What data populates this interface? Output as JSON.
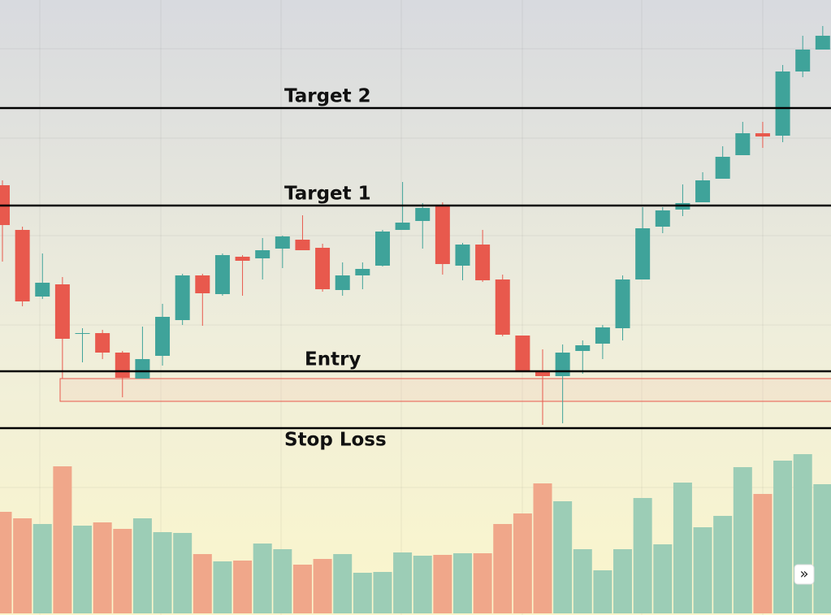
{
  "chart_data": {
    "type": "candlestick",
    "ylim": [
      0,
      757
    ],
    "volume_lim": [
      0,
      755
    ],
    "up_color": "#3fa39a",
    "down_color": "#e8594d",
    "volume_up_color": "#9ccdb6",
    "volume_down_color": "#f0a78a",
    "open": [
      529,
      474,
      392,
      407,
      346,
      347,
      323,
      291,
      319,
      363,
      418,
      395,
      441,
      439,
      451,
      462,
      452,
      400,
      418,
      430,
      474,
      485,
      503,
      430,
      456,
      413,
      344,
      299,
      294,
      325,
      334,
      353,
      413,
      478,
      499,
      508,
      537,
      566,
      593,
      590,
      669,
      696
    ],
    "high": [
      535,
      478,
      445,
      416,
      353,
      351,
      325,
      355,
      383,
      420,
      420,
      445,
      443,
      464,
      467,
      492,
      457,
      434,
      434,
      474,
      533,
      507,
      508,
      458,
      474,
      419,
      344,
      327,
      333,
      338,
      357,
      418,
      502,
      502,
      530,
      545,
      577,
      607,
      607,
      677,
      713,
      725
    ],
    "low": [
      435,
      380,
      389,
      291,
      311,
      315,
      268,
      291,
      307,
      357,
      356,
      393,
      393,
      413,
      427,
      449,
      398,
      393,
      401,
      429,
      474,
      451,
      419,
      412,
      410,
      343,
      301,
      234,
      236,
      297,
      315,
      338,
      413,
      470,
      491,
      508,
      537,
      566,
      575,
      582,
      662,
      696
    ],
    "close": [
      480,
      386,
      409,
      340,
      347,
      323,
      292,
      315,
      367,
      418,
      396,
      443,
      436,
      449,
      466,
      449,
      401,
      418,
      426,
      472,
      483,
      501,
      432,
      456,
      412,
      345,
      301,
      294,
      323,
      332,
      354,
      413,
      476,
      498,
      507,
      535,
      564,
      593,
      589,
      669,
      696,
      713
    ],
    "volume": [
      125,
      117,
      110,
      181,
      108,
      112,
      104,
      117,
      100,
      99,
      73,
      64,
      65,
      86,
      79,
      60,
      67,
      73,
      50,
      51,
      75,
      71,
      72,
      74,
      74,
      110,
      123,
      160,
      138,
      79,
      53,
      79,
      142,
      85,
      161,
      106,
      120,
      180,
      147,
      188,
      196,
      159
    ],
    "levels": [
      {
        "label": "Target 2",
        "value": 624
      },
      {
        "label": "Target 1",
        "value": 504
      },
      {
        "label": "Entry",
        "value": 300
      },
      {
        "label": "Stop Loss",
        "value": 230
      }
    ],
    "zone": {
      "low": 263,
      "high": 291
    },
    "scroll_button": "»"
  }
}
